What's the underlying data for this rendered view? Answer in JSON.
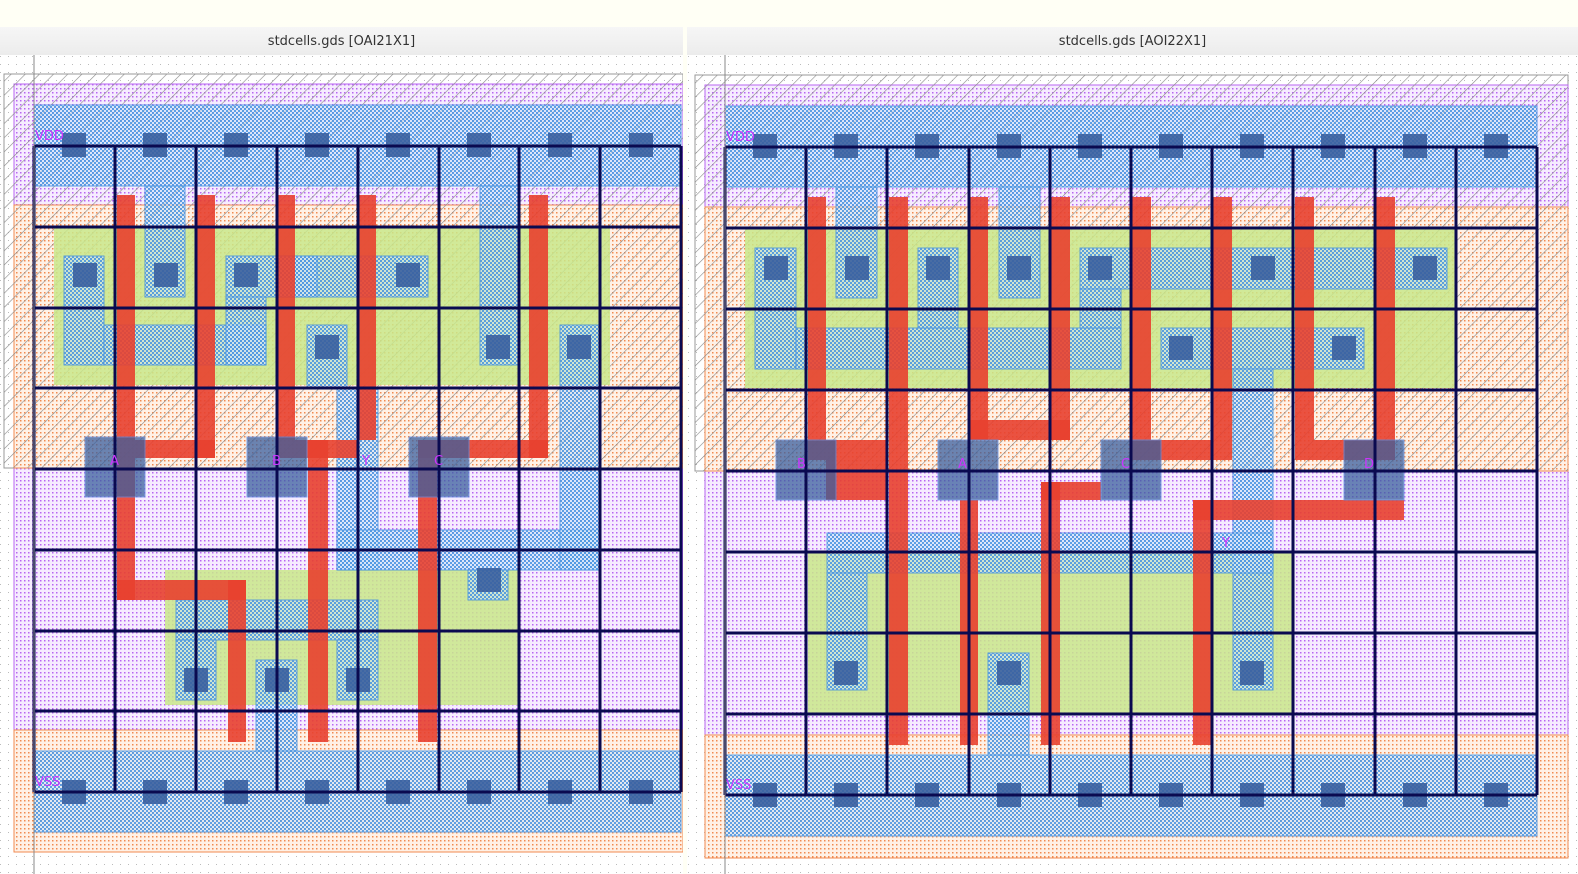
{
  "windows": [
    {
      "title": "stdcells.gds [OAI21X1]",
      "labels": {
        "power": "VDD",
        "ground": "VSS",
        "pins": [
          "A",
          "B",
          "Y",
          "C"
        ]
      }
    },
    {
      "title": "stdcells.gds [AOI22X1]",
      "labels": {
        "power": "VDD",
        "ground": "VSS",
        "pins": [
          "B",
          "A",
          "C",
          "D",
          "Y"
        ]
      }
    }
  ],
  "colors": {
    "metal1": "#3f8fe0",
    "poly": "#e8402f",
    "active": "#c9e88a",
    "contact": "#3a5f9e",
    "nwell_hatch": "#888888",
    "nselect": "#b866f0",
    "pselect": "#f08a50",
    "grid": "#0a0a50",
    "label": "#cc33ff"
  }
}
